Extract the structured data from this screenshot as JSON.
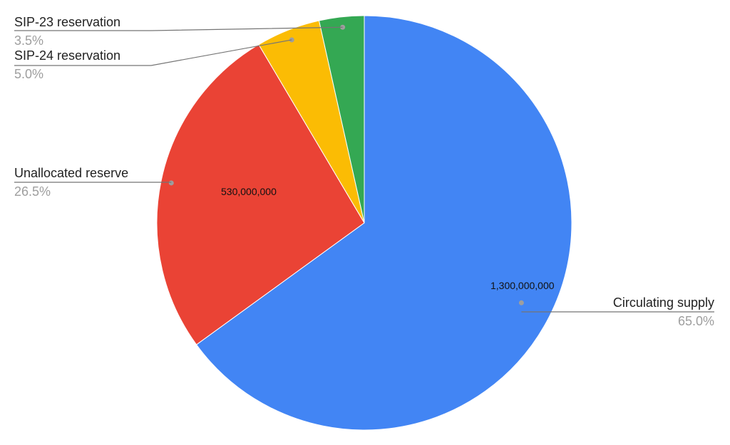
{
  "chart_data": {
    "type": "pie",
    "start_angle_deg": 0,
    "direction": "clockwise",
    "slices": [
      {
        "name": "Circulating supply",
        "value": 1300000000,
        "percent_label": "65.0%",
        "value_label": "1,300,000,000",
        "color": "#4285F4"
      },
      {
        "name": "Unallocated reserve",
        "value": 530000000,
        "percent_label": "26.5%",
        "value_label": "530,000,000",
        "color": "#EA4335"
      },
      {
        "name": "SIP-24 reservation",
        "value": 100000000,
        "percent_label": "5.0%",
        "value_label": "",
        "color": "#FBBC04"
      },
      {
        "name": "SIP-23 reservation",
        "value": 70000000,
        "percent_label": "3.5%",
        "value_label": "",
        "color": "#34A853"
      }
    ],
    "legend": "none",
    "labels": "outside with leader lines"
  }
}
